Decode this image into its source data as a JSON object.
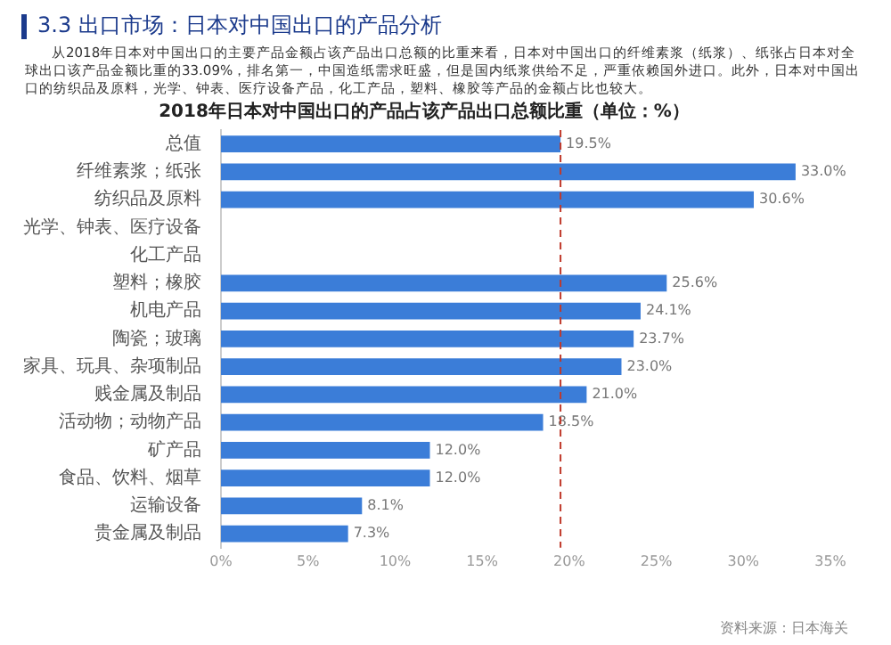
{
  "chart_data": {
    "type": "bar",
    "orientation": "horizontal",
    "title": "2018年日本对中国出口的产品占该产品出口总额比重（单位：%）",
    "annotations": [
      "3.3 出口市场：日本对中国出口的产品分析",
      "从2018年日本对中国出口的主要产品金额占该产品出口总额的比重来看，日本对中国出口的纤维素浆（纸浆）、纸张占日本对全球出口该产品金额比重的33.09%，排名第一，中国造纸需求旺盛，但是国内纸浆供给不足，严重依赖国外进口。此外，日本对中国出口的纺织品及原料，光学、钟表、医疗设备产品，化工产品，塑料、橡胶等产品的金额占比也较大。",
      "资料来源：日本海关"
    ],
    "categories": [
      "总值",
      "纤维素浆；纸张",
      "纺织品及原料",
      "光学、钟表、医疗设备",
      "化工产品",
      "塑料；橡胶",
      "机电产品",
      "陶瓷；玻璃",
      "家具、玩具、杂项制品",
      "贱金属及制品",
      "活动物；动物产品",
      "矿产品",
      "食品、饮料、烟草",
      "运输设备",
      "贵金属及制品"
    ],
    "values": [
      19.5,
      33.0,
      30.6,
      null,
      null,
      25.6,
      24.1,
      23.7,
      23.0,
      21.0,
      18.5,
      12.0,
      12.0,
      8.1,
      7.3
    ],
    "value_labels": [
      "19.5%",
      "33.0%",
      "30.6%",
      null,
      null,
      "25.6%",
      "24.1%",
      "23.7%",
      "23.0%",
      "21.0%",
      "18.5%",
      "12.0%",
      "12.0%",
      "8.1%",
      "7.3%"
    ],
    "color": "#3b7dd8",
    "xlim": [
      0,
      35
    ],
    "xticks": [
      {
        "value": 0,
        "label": "0%"
      },
      {
        "value": 5,
        "label": "5%"
      },
      {
        "value": 10,
        "label": "10%"
      },
      {
        "value": 15,
        "label": "15%"
      },
      {
        "value": 20,
        "label": "20%"
      },
      {
        "value": 25,
        "label": "25%"
      },
      {
        "value": 30,
        "label": "30%"
      },
      {
        "value": 35,
        "label": "35%"
      }
    ],
    "ref_lines": [
      {
        "axis": "x",
        "value": 19.5,
        "color": "#c0392b",
        "line_style": "dashed"
      }
    ],
    "grid": false,
    "legend": false
  }
}
